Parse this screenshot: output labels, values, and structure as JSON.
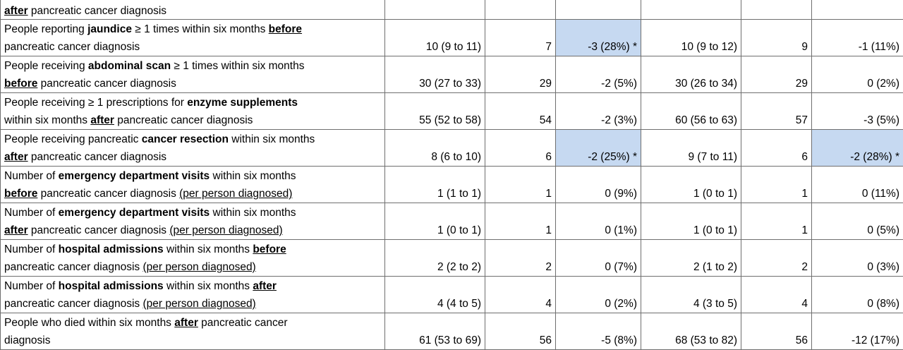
{
  "top_row": {
    "label": [
      [
        {
          "t": "after",
          "s": "bu"
        },
        {
          "t": " pancreatic cancer diagnosis",
          "s": ""
        }
      ]
    ],
    "cells": [
      "",
      "",
      "",
      "",
      "",
      ""
    ]
  },
  "rows": [
    {
      "label": [
        [
          {
            "t": "People reporting ",
            "s": ""
          },
          {
            "t": "jaundice",
            "s": "b"
          },
          {
            "t": " ≥ 1 times within six months ",
            "s": ""
          },
          {
            "t": "before",
            "s": "bu"
          }
        ],
        [
          {
            "t": "pancreatic cancer diagnosis",
            "s": ""
          }
        ]
      ],
      "cells": [
        "10 (9 to 11)",
        "7",
        "-3 (28%) *",
        "10 (9 to 12)",
        "9",
        "-1 (11%)"
      ],
      "highlight": [
        false,
        false,
        true,
        false,
        false,
        false
      ]
    },
    {
      "label": [
        [
          {
            "t": "People receiving ",
            "s": ""
          },
          {
            "t": "abdominal scan",
            "s": "b"
          },
          {
            "t": " ≥ 1 times within six months",
            "s": ""
          }
        ],
        [
          {
            "t": "before",
            "s": "bu"
          },
          {
            "t": " pancreatic cancer diagnosis",
            "s": ""
          }
        ]
      ],
      "cells": [
        "30 (27 to 33)",
        "29",
        "-2 (5%)",
        "30 (26 to 34)",
        "29",
        "0 (2%)"
      ],
      "highlight": [
        false,
        false,
        false,
        false,
        false,
        false
      ]
    },
    {
      "label": [
        [
          {
            "t": "People receiving ≥ 1 prescriptions for ",
            "s": ""
          },
          {
            "t": "enzyme supplements",
            "s": "b"
          }
        ],
        [
          {
            "t": "within six months ",
            "s": ""
          },
          {
            "t": "after",
            "s": "bu"
          },
          {
            "t": " pancreatic cancer diagnosis",
            "s": ""
          }
        ]
      ],
      "cells": [
        "55 (52 to 58)",
        "54",
        "-2 (3%)",
        "60 (56 to 63)",
        "57",
        "-3 (5%)"
      ],
      "highlight": [
        false,
        false,
        false,
        false,
        false,
        false
      ]
    },
    {
      "label": [
        [
          {
            "t": "People receiving pancreatic ",
            "s": ""
          },
          {
            "t": "cancer resection",
            "s": "b"
          },
          {
            "t": " within six months",
            "s": ""
          }
        ],
        [
          {
            "t": "after",
            "s": "bu"
          },
          {
            "t": " pancreatic cancer diagnosis",
            "s": ""
          }
        ]
      ],
      "cells": [
        "8 (6 to 10)",
        "6",
        "-2 (25%) *",
        "9 (7 to 11)",
        "6",
        "-2 (28%) *"
      ],
      "highlight": [
        false,
        false,
        true,
        false,
        false,
        true
      ]
    },
    {
      "label": [
        [
          {
            "t": "Number of ",
            "s": ""
          },
          {
            "t": "emergency department visits",
            "s": "b"
          },
          {
            "t": " within six months",
            "s": ""
          }
        ],
        [
          {
            "t": "before",
            "s": "bu"
          },
          {
            "t": " pancreatic cancer diagnosis ",
            "s": ""
          },
          {
            "t": "(per person diagnosed)",
            "s": "u"
          }
        ]
      ],
      "cells": [
        "1 (1 to 1)",
        "1",
        "0 (9%)",
        "1 (0 to 1)",
        "1",
        "0 (11%)"
      ],
      "highlight": [
        false,
        false,
        false,
        false,
        false,
        false
      ]
    },
    {
      "label": [
        [
          {
            "t": "Number of ",
            "s": ""
          },
          {
            "t": "emergency department visits",
            "s": "b"
          },
          {
            "t": " within six months",
            "s": ""
          }
        ],
        [
          {
            "t": "after",
            "s": "bu"
          },
          {
            "t": " pancreatic cancer diagnosis ",
            "s": ""
          },
          {
            "t": "(per person diagnosed)",
            "s": "u"
          }
        ]
      ],
      "cells": [
        "1 (0 to 1)",
        "1",
        "0 (1%)",
        "1 (0 to 1)",
        "1",
        "0 (5%)"
      ],
      "highlight": [
        false,
        false,
        false,
        false,
        false,
        false
      ]
    },
    {
      "label": [
        [
          {
            "t": "Number of ",
            "s": ""
          },
          {
            "t": "hospital admissions",
            "s": "b"
          },
          {
            "t": " within six months ",
            "s": ""
          },
          {
            "t": "before",
            "s": "bu"
          }
        ],
        [
          {
            "t": "pancreatic cancer diagnosis ",
            "s": ""
          },
          {
            "t": "(per person diagnosed)",
            "s": "u"
          }
        ]
      ],
      "cells": [
        "2 (2 to 2)",
        "2",
        "0 (7%)",
        "2 (1 to 2)",
        "2",
        "0 (3%)"
      ],
      "highlight": [
        false,
        false,
        false,
        false,
        false,
        false
      ]
    },
    {
      "label": [
        [
          {
            "t": "Number of ",
            "s": ""
          },
          {
            "t": "hospital admissions",
            "s": "b"
          },
          {
            "t": " within six months ",
            "s": ""
          },
          {
            "t": "after",
            "s": "bu"
          }
        ],
        [
          {
            "t": "pancreatic cancer diagnosis ",
            "s": ""
          },
          {
            "t": "(per person diagnosed)",
            "s": "u"
          }
        ]
      ],
      "cells": [
        "4 (4 to 5)",
        "4",
        "0 (2%)",
        "4 (3 to 5)",
        "4",
        "0 (8%)"
      ],
      "highlight": [
        false,
        false,
        false,
        false,
        false,
        false
      ]
    },
    {
      "label": [
        [
          {
            "t": "People who died within six months ",
            "s": ""
          },
          {
            "t": "after",
            "s": "bu"
          },
          {
            "t": " pancreatic cancer",
            "s": ""
          }
        ],
        [
          {
            "t": "diagnosis",
            "s": ""
          }
        ]
      ],
      "cells": [
        "61 (53 to 69)",
        "56",
        "-5 (8%)",
        "68 (53 to 82)",
        "56",
        "-12 (17%)"
      ],
      "highlight": [
        false,
        false,
        false,
        false,
        false,
        false
      ]
    }
  ],
  "colors": {
    "border": "#6f6f6f",
    "highlight": "#c6d9f1",
    "text": "#000000"
  }
}
